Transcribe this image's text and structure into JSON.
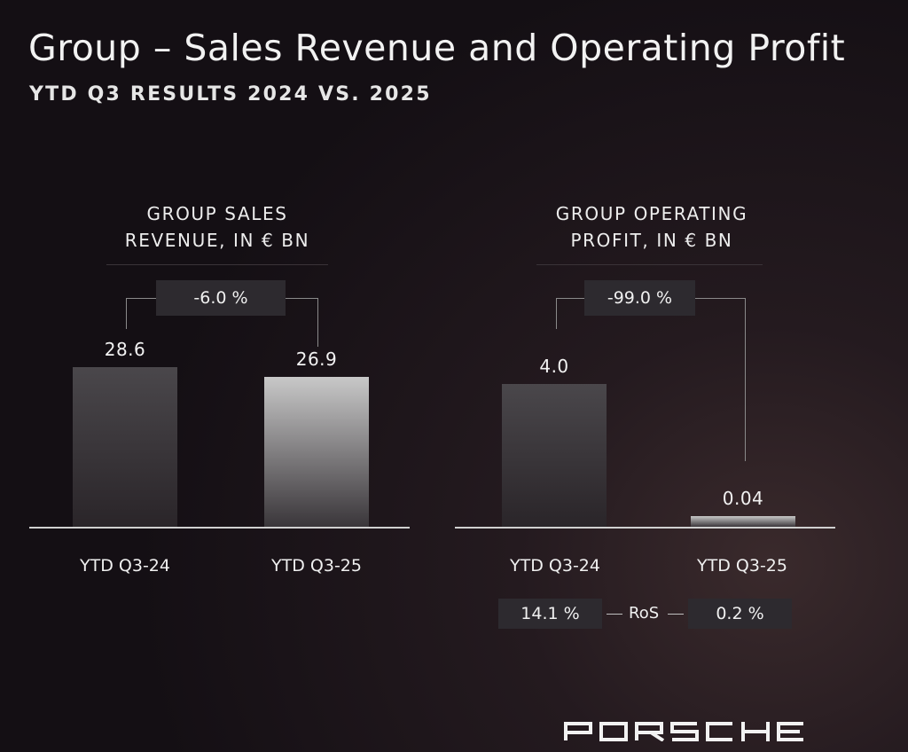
{
  "page": {
    "title": "Group – Sales Revenue and Operating Profit",
    "subtitle": "YTD Q3 RESULTS 2024 VS. 2025",
    "logo_text": "PORSCHE"
  },
  "chart_data": [
    {
      "type": "bar",
      "title_lines": [
        "GROUP SALES",
        "REVENUE, IN € BN"
      ],
      "categories": [
        "YTD Q3-24",
        "YTD Q3-25"
      ],
      "values": [
        28.6,
        26.9
      ],
      "value_labels": [
        "28.6",
        "26.9"
      ],
      "change_label": "-6.0 %",
      "ylim": [
        0,
        35
      ],
      "colors": [
        "#4a474b",
        "#c8c8c8"
      ]
    },
    {
      "type": "bar",
      "title_lines": [
        "GROUP OPERATING",
        "PROFIT, IN € BN"
      ],
      "categories": [
        "YTD Q3-24",
        "YTD Q3-25"
      ],
      "values": [
        4.0,
        0.04
      ],
      "value_labels": [
        "4.0",
        "0.04"
      ],
      "change_label": "-99.0 %",
      "ylim": [
        0,
        4.9
      ],
      "colors": [
        "#4a474b",
        "#c8c8c8"
      ],
      "ros": {
        "label": "RoS",
        "values": [
          "14.1 %",
          "0.2 %"
        ]
      }
    }
  ]
}
